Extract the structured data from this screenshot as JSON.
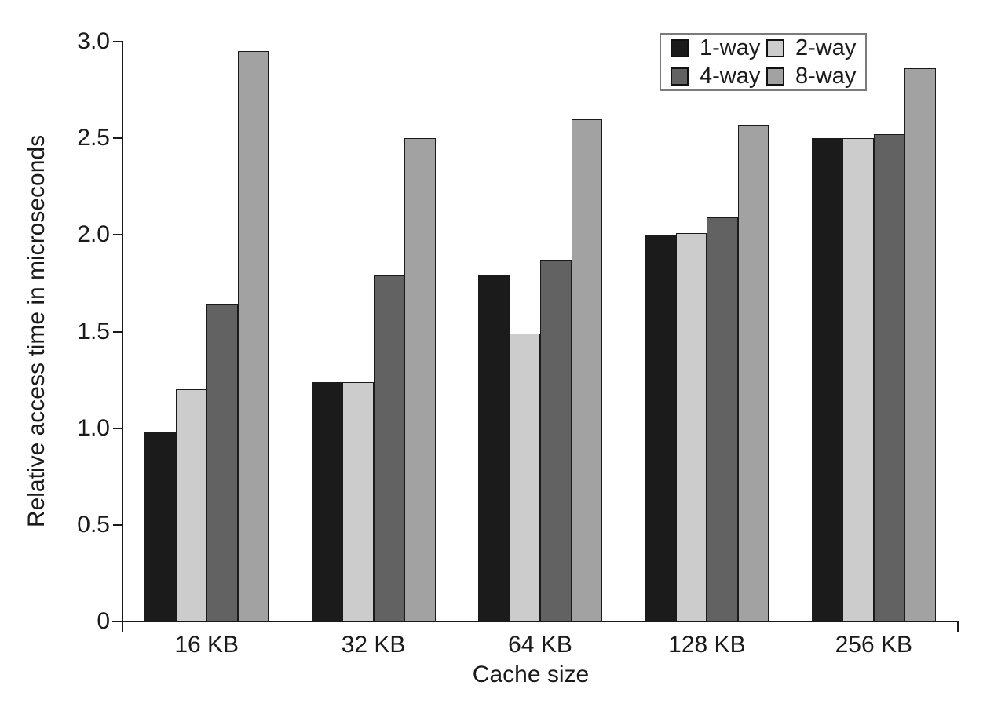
{
  "figure": {
    "background": "#ffffff"
  },
  "chart_data": {
    "type": "bar",
    "title": "",
    "xlabel": "Cache size",
    "ylabel": "Relative access time in microseconds",
    "categories": [
      "16 KB",
      "32 KB",
      "64 KB",
      "128 KB",
      "256 KB"
    ],
    "series": [
      {
        "name": "1-way",
        "color": "#1b1b1b",
        "values": [
          0.98,
          1.24,
          1.79,
          2.0,
          2.5
        ]
      },
      {
        "name": "2-way",
        "color": "#cccccc",
        "values": [
          1.2,
          1.24,
          1.49,
          2.01,
          2.5
        ]
      },
      {
        "name": "4-way",
        "color": "#626262",
        "values": [
          1.64,
          1.79,
          1.87,
          2.09,
          2.52
        ]
      },
      {
        "name": "8-way",
        "color": "#a2a2a2",
        "values": [
          2.95,
          2.5,
          2.6,
          2.57,
          2.86
        ]
      }
    ],
    "ylim": [
      0,
      3.0
    ],
    "yticks": [
      "0",
      "0.5",
      "1.0",
      "1.5",
      "2.0",
      "2.5",
      "3.0"
    ],
    "legend_position": "top-right",
    "grid": false,
    "axis_color": "#1a1a1a",
    "bar_outline_color": "#1a1a1a",
    "legend_border_color": "#7a7a7a",
    "swatch_border_color": "#111111"
  }
}
